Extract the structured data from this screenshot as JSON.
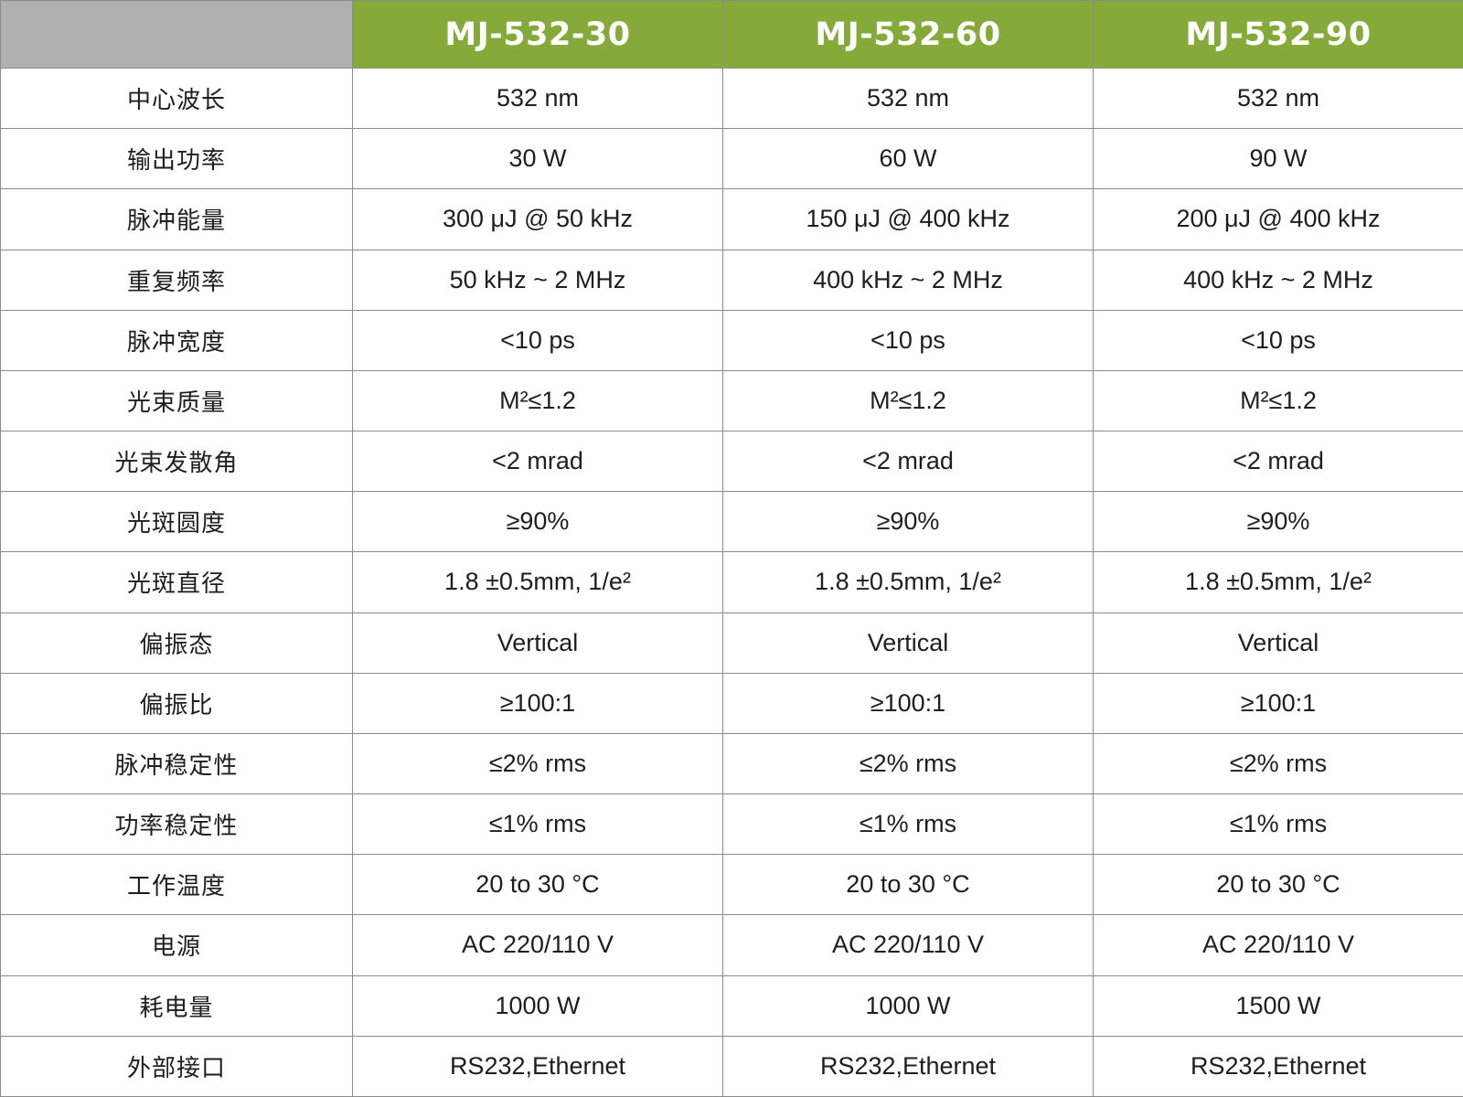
{
  "table": {
    "models": [
      "MJ-532-30",
      "MJ-532-60",
      "MJ-532-90"
    ],
    "colors": {
      "header_green": "#85aa39",
      "corner_gray": "#b0b0b0",
      "grid_line": "#8c8c8c"
    },
    "rows": [
      {
        "param": "中心波长",
        "values": [
          "532 nm",
          "532 nm",
          "532 nm"
        ]
      },
      {
        "param": "输出功率",
        "values": [
          "30 W",
          "60 W",
          "90 W"
        ]
      },
      {
        "param": "脉冲能量",
        "values": [
          "300 μJ @ 50 kHz",
          "150 μJ @ 400 kHz",
          "200 μJ @ 400 kHz"
        ]
      },
      {
        "param": "重复频率",
        "values": [
          "50 kHz ~ 2 MHz",
          "400 kHz ~ 2 MHz",
          "400 kHz ~ 2 MHz"
        ]
      },
      {
        "param": "脉冲宽度",
        "values": [
          "<10 ps",
          "<10 ps",
          "<10 ps"
        ]
      },
      {
        "param": "光束质量",
        "values": [
          "M²≤1.2",
          "M²≤1.2",
          "M²≤1.2"
        ]
      },
      {
        "param": "光束发散角",
        "values": [
          "<2 mrad",
          "<2 mrad",
          "<2 mrad"
        ]
      },
      {
        "param": "光斑圆度",
        "values": [
          "≥90%",
          "≥90%",
          "≥90%"
        ]
      },
      {
        "param": "光斑直径",
        "values": [
          "1.8 ±0.5mm, 1/e²",
          "1.8 ±0.5mm, 1/e²",
          "1.8 ±0.5mm, 1/e²"
        ]
      },
      {
        "param": "偏振态",
        "values": [
          "Vertical",
          "Vertical",
          "Vertical"
        ]
      },
      {
        "param": "偏振比",
        "values": [
          "≥100:1",
          "≥100:1",
          "≥100:1"
        ]
      },
      {
        "param": "脉冲稳定性",
        "values": [
          "≤2% rms",
          "≤2% rms",
          "≤2% rms"
        ]
      },
      {
        "param": "功率稳定性",
        "values": [
          "≤1% rms",
          "≤1% rms",
          "≤1% rms"
        ]
      },
      {
        "param": "工作温度",
        "values": [
          "20 to 30 °C",
          "20 to 30 °C",
          "20 to 30 °C"
        ]
      },
      {
        "param": "电源",
        "values": [
          "AC 220/110 V",
          "AC 220/110 V",
          "AC 220/110 V"
        ]
      },
      {
        "param": "耗电量",
        "values": [
          "1000 W",
          "1000 W",
          "1500 W"
        ]
      },
      {
        "param": "外部接口",
        "values": [
          "RS232,Ethernet",
          "RS232,Ethernet",
          "RS232,Ethernet"
        ]
      }
    ]
  }
}
